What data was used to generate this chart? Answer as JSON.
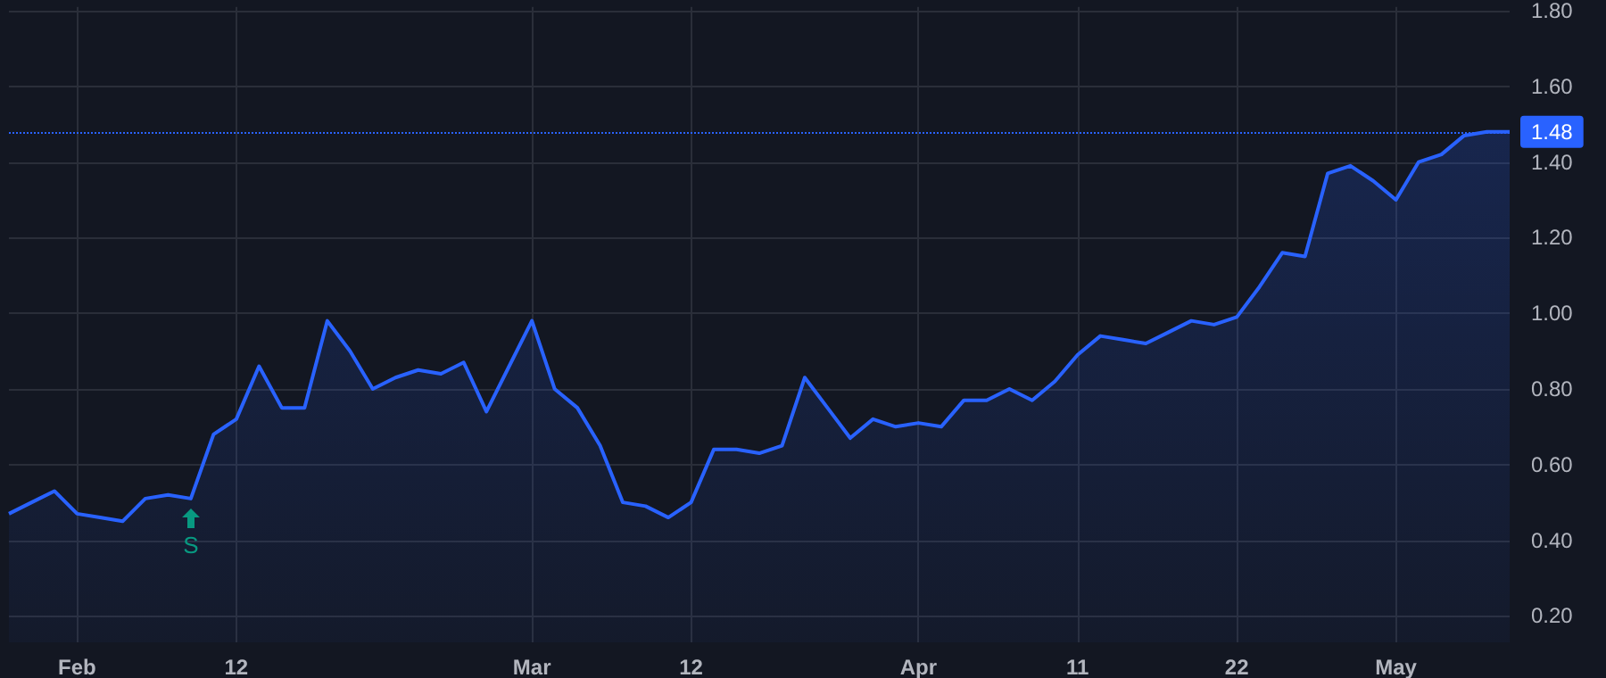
{
  "chart_data": {
    "type": "area",
    "categories": [
      null,
      null,
      null,
      "Feb",
      null,
      null,
      null,
      null,
      null,
      null,
      "12",
      null,
      null,
      null,
      null,
      null,
      null,
      null,
      null,
      null,
      null,
      null,
      null,
      "Mar",
      null,
      null,
      null,
      null,
      null,
      null,
      "12",
      null,
      null,
      null,
      null,
      null,
      null,
      null,
      null,
      null,
      "Apr",
      null,
      null,
      null,
      null,
      null,
      null,
      "11",
      null,
      null,
      null,
      null,
      null,
      null,
      "22",
      null,
      null,
      null,
      null,
      null,
      null,
      "May",
      null,
      null,
      null,
      null,
      null
    ],
    "series": [
      {
        "color": "#2962ff",
        "values": [
          0.47,
          0.5,
          0.53,
          0.47,
          0.46,
          0.45,
          0.51,
          0.52,
          0.51,
          0.68,
          0.72,
          0.86,
          0.75,
          0.75,
          0.98,
          0.9,
          0.8,
          0.83,
          0.85,
          0.84,
          0.87,
          0.74,
          0.86,
          0.98,
          0.8,
          0.75,
          0.65,
          0.5,
          0.49,
          0.46,
          0.5,
          0.64,
          0.64,
          0.63,
          0.65,
          0.83,
          0.75,
          0.67,
          0.72,
          0.7,
          0.71,
          0.7,
          0.77,
          0.77,
          0.8,
          0.77,
          0.82,
          0.89,
          0.94,
          0.93,
          0.92,
          0.95,
          0.98,
          0.97,
          0.99,
          1.07,
          1.16,
          1.15,
          1.37,
          1.39,
          1.35,
          1.3,
          1.4,
          1.42,
          1.47,
          1.48,
          1.48
        ]
      }
    ],
    "ylim": [
      0.13,
      1.81
    ],
    "yticks": [
      {
        "value": 0.2,
        "label": "0.20"
      },
      {
        "value": 0.4,
        "label": "0.40"
      },
      {
        "value": 0.6,
        "label": "0.60"
      },
      {
        "value": 0.8,
        "label": "0.80"
      },
      {
        "value": 1.0,
        "label": "1.00"
      },
      {
        "value": 1.2,
        "label": "1.20"
      },
      {
        "value": 1.4,
        "label": "1.40"
      },
      {
        "value": 1.6,
        "label": "1.60"
      },
      {
        "value": 1.8,
        "label": "1.80"
      }
    ],
    "grid": true,
    "ref_lines": [
      {
        "axis": "y",
        "value": 1.48,
        "label": "1.48",
        "color": "#2962ff",
        "line_style": "dotted"
      }
    ],
    "annotations": [
      "S"
    ]
  }
}
